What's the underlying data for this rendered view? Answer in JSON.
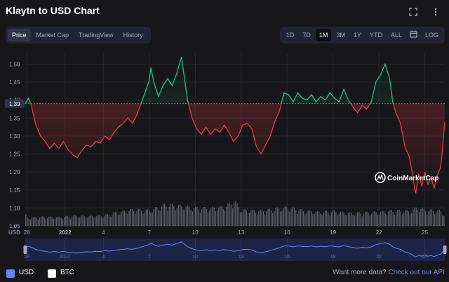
{
  "header": {
    "title": "Klaytn to USD Chart"
  },
  "tabs": [
    {
      "label": "Price",
      "active": true
    },
    {
      "label": "Market Cap",
      "active": false
    },
    {
      "label": "TradingView",
      "active": false
    },
    {
      "label": "History",
      "active": false
    }
  ],
  "ranges": [
    {
      "label": "1D",
      "active": false
    },
    {
      "label": "7D",
      "active": false
    },
    {
      "label": "1M",
      "active": true
    },
    {
      "label": "3M",
      "active": false
    },
    {
      "label": "1Y",
      "active": false
    },
    {
      "label": "YTD",
      "active": false
    },
    {
      "label": "ALL",
      "active": false
    }
  ],
  "range_log_label": "LOG",
  "icons": {
    "fullscreen": "fullscreen-icon",
    "more": "more-icon",
    "calendar": "calendar-icon",
    "watermark": "coinmarketcap-logo-icon"
  },
  "watermark_text": "CoinMarketCap",
  "currency_label": "USD",
  "footer": {
    "usd_label": "USD",
    "btc_label": "BTC",
    "api_prompt": "Want more data?",
    "api_link": "Check out our API"
  },
  "colors": {
    "up": "#16c784",
    "down": "#ea3943",
    "accent": "#6188ff",
    "bg": "#17171a"
  },
  "chart_data": {
    "type": "line",
    "baseline": 1.39,
    "baseline_label": "1.39",
    "ylim": [
      1.05,
      1.53
    ],
    "y_ticks": [
      "1.05",
      "1.10",
      "1.15",
      "1.20",
      "1.25",
      "1.30",
      "1.35",
      "1.40",
      "1.45",
      "1.50"
    ],
    "x_ticks": [
      "28",
      "2022",
      "4",
      "7",
      "10",
      "13",
      "16",
      "19",
      "22",
      "25"
    ],
    "x_ticks_pos_days": [
      0,
      2.5,
      5,
      8,
      11,
      14,
      17,
      20,
      23,
      26
    ],
    "x_range_days": [
      -0.1,
      27.3
    ],
    "grid": true,
    "price_points": [
      [
        -0.1,
        1.39
      ],
      [
        0.1,
        1.405
      ],
      [
        0.3,
        1.385
      ],
      [
        0.6,
        1.33
      ],
      [
        0.9,
        1.3
      ],
      [
        1.2,
        1.285
      ],
      [
        1.5,
        1.265
      ],
      [
        1.8,
        1.28
      ],
      [
        2.1,
        1.265
      ],
      [
        2.4,
        1.285
      ],
      [
        2.7,
        1.262
      ],
      [
        3.0,
        1.248
      ],
      [
        3.3,
        1.24
      ],
      [
        3.6,
        1.26
      ],
      [
        3.9,
        1.275
      ],
      [
        4.2,
        1.27
      ],
      [
        4.5,
        1.285
      ],
      [
        4.8,
        1.28
      ],
      [
        5.1,
        1.3
      ],
      [
        5.4,
        1.29
      ],
      [
        5.7,
        1.31
      ],
      [
        6.0,
        1.325
      ],
      [
        6.3,
        1.335
      ],
      [
        6.6,
        1.35
      ],
      [
        6.9,
        1.335
      ],
      [
        7.2,
        1.36
      ],
      [
        7.5,
        1.395
      ],
      [
        7.8,
        1.43
      ],
      [
        8.0,
        1.455
      ],
      [
        8.1,
        1.49
      ],
      [
        8.3,
        1.45
      ],
      [
        8.6,
        1.41
      ],
      [
        8.9,
        1.44
      ],
      [
        9.2,
        1.46
      ],
      [
        9.5,
        1.44
      ],
      [
        9.8,
        1.475
      ],
      [
        10.1,
        1.52
      ],
      [
        10.3,
        1.46
      ],
      [
        10.5,
        1.4
      ],
      [
        10.8,
        1.35
      ],
      [
        11.1,
        1.32
      ],
      [
        11.4,
        1.305
      ],
      [
        11.7,
        1.325
      ],
      [
        12.0,
        1.305
      ],
      [
        12.3,
        1.32
      ],
      [
        12.6,
        1.31
      ],
      [
        12.9,
        1.33
      ],
      [
        13.2,
        1.31
      ],
      [
        13.5,
        1.285
      ],
      [
        13.8,
        1.3
      ],
      [
        14.1,
        1.33
      ],
      [
        14.4,
        1.335
      ],
      [
        14.7,
        1.32
      ],
      [
        15.0,
        1.27
      ],
      [
        15.3,
        1.25
      ],
      [
        15.6,
        1.275
      ],
      [
        15.9,
        1.3
      ],
      [
        16.2,
        1.34
      ],
      [
        16.5,
        1.37
      ],
      [
        16.8,
        1.42
      ],
      [
        17.1,
        1.415
      ],
      [
        17.4,
        1.395
      ],
      [
        17.7,
        1.42
      ],
      [
        18.0,
        1.405
      ],
      [
        18.3,
        1.4
      ],
      [
        18.6,
        1.415
      ],
      [
        18.9,
        1.395
      ],
      [
        19.2,
        1.41
      ],
      [
        19.5,
        1.4
      ],
      [
        19.8,
        1.42
      ],
      [
        20.1,
        1.405
      ],
      [
        20.4,
        1.395
      ],
      [
        20.7,
        1.43
      ],
      [
        21.0,
        1.4
      ],
      [
        21.3,
        1.38
      ],
      [
        21.6,
        1.365
      ],
      [
        21.9,
        1.385
      ],
      [
        22.2,
        1.375
      ],
      [
        22.5,
        1.395
      ],
      [
        22.8,
        1.45
      ],
      [
        23.1,
        1.47
      ],
      [
        23.4,
        1.5
      ],
      [
        23.7,
        1.46
      ],
      [
        23.9,
        1.395
      ],
      [
        24.1,
        1.365
      ],
      [
        24.4,
        1.335
      ],
      [
        24.7,
        1.27
      ],
      [
        25.0,
        1.24
      ],
      [
        25.2,
        1.19
      ],
      [
        25.4,
        1.14
      ],
      [
        25.6,
        1.195
      ],
      [
        25.8,
        1.16
      ],
      [
        26.0,
        1.2
      ],
      [
        26.2,
        1.165
      ],
      [
        26.4,
        1.185
      ],
      [
        26.6,
        1.155
      ],
      [
        26.8,
        1.19
      ],
      [
        27.0,
        1.21
      ],
      [
        27.1,
        1.24
      ],
      [
        27.2,
        1.29
      ],
      [
        27.3,
        1.34
      ]
    ],
    "volume_points": [
      [
        0,
        0.3
      ],
      [
        1,
        0.34
      ],
      [
        2,
        0.32
      ],
      [
        3,
        0.38
      ],
      [
        4,
        0.36
      ],
      [
        5,
        0.4
      ],
      [
        6,
        0.52
      ],
      [
        7,
        0.62
      ],
      [
        8,
        0.58
      ],
      [
        9,
        0.8
      ],
      [
        10,
        0.75
      ],
      [
        11,
        0.68
      ],
      [
        12,
        0.66
      ],
      [
        13,
        0.74
      ],
      [
        13.5,
        0.95
      ],
      [
        14,
        0.6
      ],
      [
        15,
        0.56
      ],
      [
        16,
        0.62
      ],
      [
        17,
        0.7
      ],
      [
        18,
        0.58
      ],
      [
        19,
        0.52
      ],
      [
        20,
        0.55
      ],
      [
        21,
        0.48
      ],
      [
        22,
        0.5
      ],
      [
        23,
        0.52
      ],
      [
        24,
        0.58
      ],
      [
        25,
        0.55
      ],
      [
        25.5,
        0.7
      ],
      [
        26,
        0.6
      ],
      [
        27,
        0.56
      ],
      [
        27.3,
        0.4
      ]
    ]
  }
}
